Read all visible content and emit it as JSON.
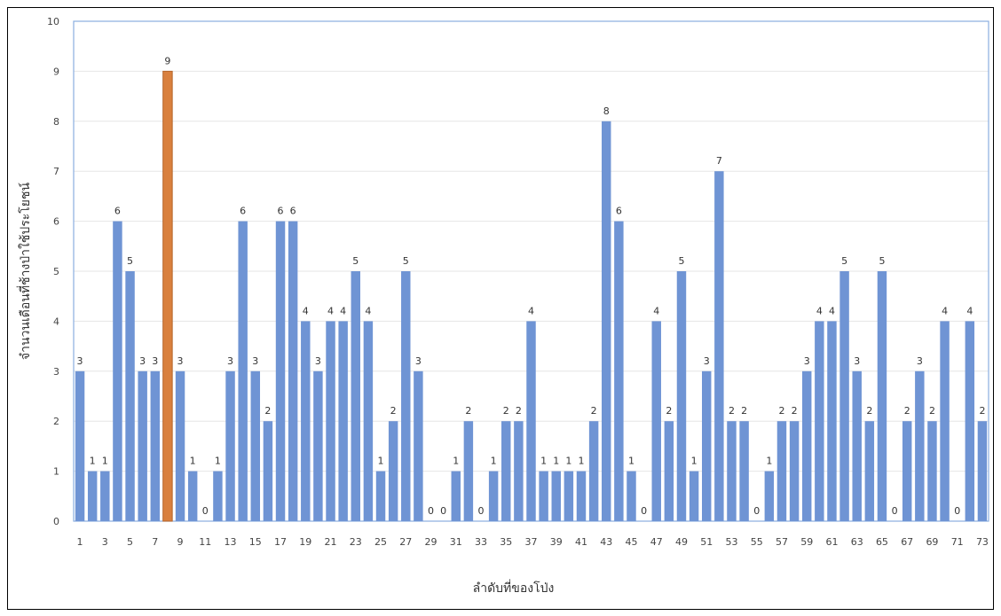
{
  "chart_data": {
    "type": "bar",
    "xlabel": "ลำดับที่ของโป่ง",
    "ylabel": "จำนวนเดือนที่ช้างป่าใช้ประโยชน์",
    "ylim": [
      0,
      10
    ],
    "yticks": [
      0,
      1,
      2,
      3,
      4,
      5,
      6,
      7,
      8,
      9,
      10
    ],
    "categories": [
      1,
      2,
      3,
      4,
      5,
      6,
      7,
      8,
      9,
      10,
      11,
      12,
      13,
      14,
      15,
      16,
      17,
      18,
      19,
      20,
      21,
      22,
      23,
      24,
      25,
      26,
      27,
      28,
      29,
      30,
      31,
      32,
      33,
      34,
      35,
      36,
      37,
      38,
      39,
      40,
      41,
      42,
      43,
      44,
      45,
      46,
      47,
      48,
      49,
      50,
      51,
      52,
      53,
      54,
      55,
      56,
      57,
      58,
      59,
      60,
      61,
      62,
      63,
      64,
      65,
      66,
      67,
      68,
      69,
      70,
      71,
      72,
      73
    ],
    "x_tick_labels_shown": [
      1,
      3,
      5,
      7,
      9,
      11,
      13,
      15,
      17,
      19,
      21,
      23,
      25,
      27,
      29,
      31,
      33,
      35,
      37,
      39,
      41,
      43,
      45,
      47,
      49,
      51,
      53,
      55,
      57,
      59,
      61,
      63,
      65,
      67,
      69,
      71,
      73
    ],
    "values": [
      3,
      1,
      1,
      6,
      5,
      3,
      3,
      9,
      3,
      1,
      0,
      1,
      3,
      6,
      3,
      2,
      6,
      6,
      4,
      3,
      4,
      4,
      5,
      4,
      1,
      2,
      5,
      3,
      0,
      0,
      1,
      2,
      0,
      1,
      2,
      2,
      4,
      1,
      1,
      1,
      1,
      2,
      8,
      6,
      1,
      0,
      4,
      2,
      5,
      1,
      3,
      7,
      2,
      2,
      0,
      1,
      2,
      2,
      3,
      4,
      4,
      5,
      3,
      2,
      5,
      0,
      2,
      3,
      2,
      4,
      0,
      4,
      2
    ],
    "highlight_index": 7,
    "colors": {
      "bar": "#6f94d4",
      "highlight": "#d9803e",
      "plot_border": "#8aaee0",
      "grid": "#e6e6e6"
    },
    "grid": true,
    "legend": "none"
  }
}
